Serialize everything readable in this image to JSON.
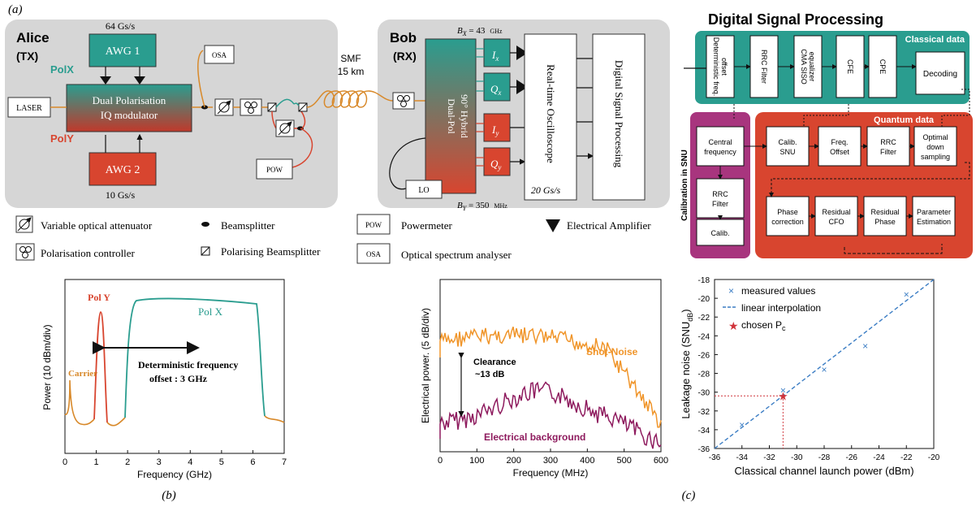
{
  "panel_labels": {
    "a": "(a)",
    "b": "(b)",
    "c": "(c)"
  },
  "setup": {
    "alice": {
      "name": "Alice",
      "role": "(TX)",
      "polx": "PolX",
      "poly": "PolY"
    },
    "awg1": {
      "label": "AWG 1",
      "rate": "64 Gs/s"
    },
    "awg2": {
      "label": "AWG 2",
      "rate": "10 Gs/s"
    },
    "laser": "LASER",
    "modulator": [
      "Dual Polarisation",
      "IQ modulator"
    ],
    "osa": "OSA",
    "pow": "POW",
    "smf": [
      "SMF",
      "15 km"
    ],
    "bob": {
      "name": "Bob",
      "role": "(RX)"
    },
    "hybrid": [
      "Dual-Pol",
      "90° Hybrid"
    ],
    "bx": "B",
    "bx_sub": "X",
    "bx_val": " = 43",
    "bx_unit": "GHz",
    "by": "B",
    "by_sub": "Y",
    "by_val": " = 350",
    "by_unit": "MHz",
    "ix": "I",
    "ix_sub": "x",
    "qx": "Q",
    "qx_sub": "x",
    "iy": "I",
    "iy_sub": "y",
    "qy": "Q",
    "qy_sub": "y",
    "scope": "Real-time Oscilloscope",
    "scope_rate": "20 Gs/s",
    "dsp_box": "Digital Signal Processing",
    "lo": "LO"
  },
  "legend": {
    "voa": "Variable optical attenuator",
    "pc": "Polarisation controller",
    "bs": "Beamsplitter",
    "pbs": "Polarising Beamsplitter",
    "pow_box": "POW",
    "pow": "Powermeter",
    "osa_box": "OSA",
    "osa": "Optical spectrum analyser",
    "amp": "Electrical Amplifier"
  },
  "dsp": {
    "title": "Digital Signal Processing",
    "classical_label": "Classical data",
    "quantum_label": "Quantum data",
    "snu_label": "Calibration in SNU",
    "classical_blocks": [
      "Deterministic freq. offset",
      "RRC Filter",
      "CMA SISO equalizer",
      "CFE",
      "CPE"
    ],
    "decoding": "Decoding",
    "snu_blocks": [
      [
        "Central",
        "frequency"
      ],
      [
        "RRC",
        "Filter"
      ],
      [
        "Calib."
      ]
    ],
    "quantum_row1": [
      [
        "Calib.",
        "SNU"
      ],
      [
        "Freq.",
        "Offset"
      ],
      [
        "RRC",
        "Filter"
      ],
      [
        "Optimal",
        "down",
        "sampling"
      ]
    ],
    "quantum_row2": [
      [
        "Phase",
        "correction"
      ],
      [
        "Residual",
        "CFO"
      ],
      [
        "Residual",
        "Phase"
      ],
      [
        "Parameter",
        "Estimation"
      ]
    ]
  },
  "spectrum": {
    "ylabel": "Power (10 dBm/div)",
    "xlabel": "Frequency (GHz)",
    "xticks": [
      "0",
      "1",
      "2",
      "3",
      "4",
      "5",
      "6",
      "7"
    ],
    "pol_y": "Pol Y",
    "pol_x": "Pol X",
    "carrier": "Carrier",
    "offset": [
      "Deterministic frequency",
      "offset : 3 GHz"
    ]
  },
  "noise": {
    "ylabel": "Electrical power. (5 dB/div)",
    "xlabel": "Frequency (MHz)",
    "xticks": [
      "0",
      "100",
      "200",
      "300",
      "400",
      "500",
      "600"
    ],
    "shot": "Shot-Noise",
    "bg": "Electrical background",
    "clearance": [
      "Clearance",
      "~13 dB"
    ]
  },
  "chart_data": [
    {
      "type": "scatter",
      "title": "",
      "xlabel": "Classical channel launch power (dBm)",
      "ylabel": "Leakage noise (SNU",
      "ylabel_sub": "dB",
      "ylabel_end": ")",
      "xlim": [
        -36,
        -20
      ],
      "ylim": [
        -36,
        -18
      ],
      "xticks": [
        -36,
        -34,
        -32,
        -30,
        -28,
        -26,
        -24,
        -22,
        -20
      ],
      "yticks": [
        -36,
        -34,
        -32,
        -30,
        -28,
        -26,
        -24,
        -22,
        -20,
        -18
      ],
      "grid": false,
      "legend_position": "top-left",
      "series": [
        {
          "name": "measured values",
          "marker": "x",
          "color": "#3b7dc4",
          "x": [
            -34,
            -31,
            -31,
            -28,
            -25,
            -22
          ],
          "y": [
            -33.5,
            -30.5,
            -29.8,
            -27.6,
            -25.1,
            -19.6
          ]
        },
        {
          "name": "linear interpolation",
          "style": "dashed",
          "color": "#3b7dc4",
          "x": [
            -36,
            -20
          ],
          "y": [
            -36,
            -18
          ]
        },
        {
          "name": "chosen P",
          "name_sub": "c",
          "marker": "star",
          "color": "#d0333a",
          "x": [
            -31
          ],
          "y": [
            -30.4
          ]
        }
      ]
    }
  ]
}
